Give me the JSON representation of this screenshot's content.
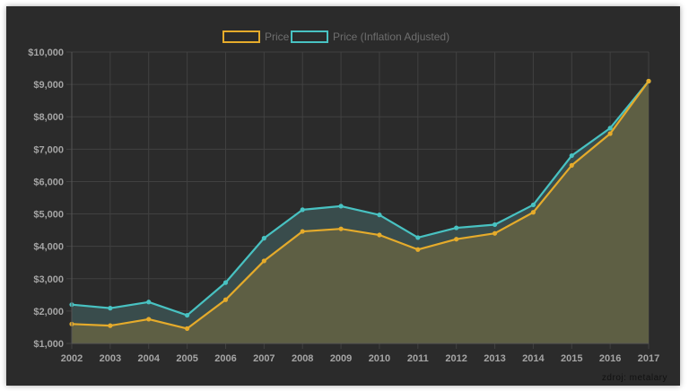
{
  "credit": "zdroj: metalary",
  "colors": {
    "background": "#2b2b2b",
    "grid": "#414141",
    "price": "#e5ab2b",
    "price_fill": "#5e5f44",
    "inflation": "#48c2c2",
    "inflation_fill": "#394c4c"
  },
  "chart_data": {
    "type": "line",
    "x": [
      "2002",
      "2003",
      "2004",
      "2005",
      "2006",
      "2007",
      "2008",
      "2009",
      "2010",
      "2011",
      "2012",
      "2013",
      "2014",
      "2015",
      "2016",
      "2017"
    ],
    "series": [
      {
        "name": "Price",
        "color": "#e5ab2b",
        "values": [
          1600,
          1550,
          1750,
          1460,
          2350,
          3550,
          4460,
          4540,
          4350,
          3900,
          4220,
          4400,
          5050,
          6500,
          7480,
          9100
        ]
      },
      {
        "name": "Price (Inflation Adjusted)",
        "color": "#48c2c2",
        "values": [
          2200,
          2090,
          2280,
          1870,
          2880,
          4250,
          5130,
          5240,
          4970,
          4270,
          4570,
          4670,
          5280,
          6800,
          7650,
          9100
        ]
      }
    ],
    "ylim": [
      1000,
      10000
    ],
    "yticks": [
      "$1,000",
      "$2,000",
      "$3,000",
      "$4,000",
      "$5,000",
      "$6,000",
      "$7,000",
      "$8,000",
      "$9,000",
      "$10,000"
    ],
    "ytick_values": [
      1000,
      2000,
      3000,
      4000,
      5000,
      6000,
      7000,
      8000,
      9000,
      10000
    ],
    "grid": true,
    "legend": "top-center",
    "filled": true
  }
}
